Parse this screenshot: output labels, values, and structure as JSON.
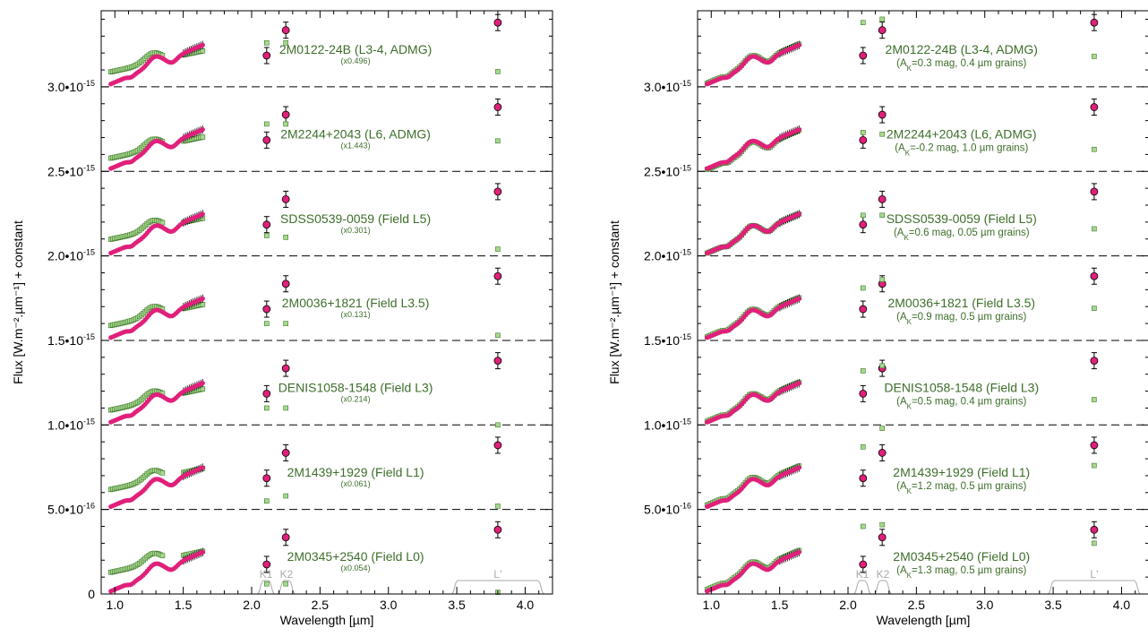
{
  "colors": {
    "observed": "#e0207a",
    "model": "#a8d890",
    "model_edge": "#3f7a2a",
    "label": "#3d6e2a",
    "filter": "#aaaaaa",
    "separator": "#000000"
  },
  "chart_data": [
    {
      "type": "scatter",
      "panel": "left",
      "xlabel": "Wavelength [µm]",
      "ylabel": "Flux [W.m⁻².µm⁻¹] + constant",
      "xlim": [
        0.9,
        4.2
      ],
      "ylim": [
        0,
        3.45e-15
      ],
      "xticks": [
        "1.0",
        "1.5",
        "2.0",
        "2.5",
        "3.0",
        "3.5",
        "4.0"
      ],
      "yticks": [
        {
          "value": 0,
          "label": "0"
        },
        {
          "value": 5e-16,
          "label": "5.0•10",
          "exp": "-16"
        },
        {
          "value": 1e-15,
          "label": "1.0•10",
          "exp": "-15"
        },
        {
          "value": 1.5e-15,
          "label": "1.5•10",
          "exp": "-15"
        },
        {
          "value": 2e-15,
          "label": "2.0•10",
          "exp": "-15"
        },
        {
          "value": 2.5e-15,
          "label": "2.5•10",
          "exp": "-15"
        },
        {
          "value": 3e-15,
          "label": "3.0•10",
          "exp": "-15"
        }
      ],
      "separators": [
        5e-16,
        1e-15,
        1.5e-15,
        2e-15,
        2.5e-15,
        3e-15
      ],
      "filters": [
        {
          "label": "K1",
          "x": [
            2.04,
            2.17
          ]
        },
        {
          "label": "K2",
          "x": [
            2.19,
            2.32
          ]
        },
        {
          "label": "L'",
          "x": [
            3.46,
            4.14
          ]
        }
      ],
      "series": [
        {
          "name": "2M0345+2540 (Field L0)",
          "note": "(x0.054)",
          "offset": 0,
          "phot": [
            1.75e-16,
            3.35e-16,
            3.8e-16
          ],
          "model_phot": [
            6e-17,
            6e-17,
            1e-17
          ],
          "model_shift": 1.1e-16
        },
        {
          "name": "2M1439+1929 (Field L1)",
          "note": "(x0.061)",
          "offset": 5e-16,
          "phot": [
            6.85e-16,
            8.35e-16,
            8.8e-16
          ],
          "model_phot": [
            5.5e-16,
            5.8e-16,
            5.2e-16
          ],
          "model_shift": 1e-16
        },
        {
          "name": "DENIS1058-1548 (Field L3)",
          "note": "(x0.214)",
          "offset": 1e-15,
          "phot": [
            1.185e-15,
            1.335e-15,
            1.38e-15
          ],
          "model_phot": [
            1.1e-15,
            1.1e-15,
            1e-15
          ],
          "model_shift": 7e-17
        },
        {
          "name": "2M0036+1821 (Field L3.5)",
          "note": "(x0.131)",
          "offset": 1.5e-15,
          "phot": [
            1.685e-15,
            1.835e-15,
            1.88e-15
          ],
          "model_phot": [
            1.6e-15,
            1.6e-15,
            1.53e-15
          ],
          "model_shift": 7e-17
        },
        {
          "name": "SDSS0539-0059 (Field L5)",
          "note": "(x0.301)",
          "offset": 2e-15,
          "phot": [
            2.185e-15,
            2.335e-15,
            2.38e-15
          ],
          "model_phot": [
            2.12e-15,
            2.11e-15,
            2.04e-15
          ],
          "model_shift": 8e-17
        },
        {
          "name": "2M2244+2043 (L6, ADMG)",
          "note": "(x1.443)",
          "offset": 2.5e-15,
          "phot": [
            2.685e-15,
            2.835e-15,
            2.88e-15
          ],
          "model_phot": [
            2.78e-15,
            2.78e-15,
            2.68e-15
          ],
          "model_shift": 6e-17
        },
        {
          "name": "2M0122-24B (L3-4, ADMG)",
          "note": "(x0.496)",
          "offset": 3e-15,
          "phot": [
            3.185e-15,
            3.335e-15,
            3.38e-15
          ],
          "model_phot": [
            3.26e-15,
            3.26e-15,
            3.09e-15
          ],
          "model_shift": 7e-17
        }
      ]
    },
    {
      "type": "scatter",
      "panel": "right",
      "xlabel": "Wavelength [µm]",
      "ylabel": "Flux [W.m⁻².µm⁻¹] + constant",
      "xlim": [
        0.9,
        4.2
      ],
      "ylim": [
        0,
        3.45e-15
      ],
      "xticks": [
        "1.0",
        "1.5",
        "2.0",
        "2.5",
        "3.0",
        "3.5",
        "4.0"
      ],
      "yticks": [
        {
          "value": 5e-16,
          "label": "5.0•10",
          "exp": "-16"
        },
        {
          "value": 1e-15,
          "label": "1.0•10",
          "exp": "-15"
        },
        {
          "value": 1.5e-15,
          "label": "1.5•10",
          "exp": "-15"
        },
        {
          "value": 2e-15,
          "label": "2.0•10",
          "exp": "-15"
        },
        {
          "value": 2.5e-15,
          "label": "2.5•10",
          "exp": "-15"
        },
        {
          "value": 3e-15,
          "label": "3.0•10",
          "exp": "-15"
        }
      ],
      "separators": [
        5e-16,
        1e-15,
        1.5e-15,
        2e-15,
        2.5e-15,
        3e-15
      ],
      "filters": [
        {
          "label": "K1",
          "x": [
            2.04,
            2.17
          ]
        },
        {
          "label": "K2",
          "x": [
            2.19,
            2.32
          ]
        },
        {
          "label": "L'",
          "x": [
            3.46,
            4.14
          ]
        }
      ],
      "series": [
        {
          "name": "2M0345+2540 (Field L0)",
          "note": "(A",
          "note_sub": "K",
          "note_tail": "=1.3 mag, 0.5 µm grains)",
          "offset": 0,
          "phot": [
            1.75e-16,
            3.35e-16,
            3.8e-16
          ],
          "model_phot": [
            4e-16,
            4.1e-16,
            3e-16
          ],
          "model_shift": 1e-17
        },
        {
          "name": "2M1439+1929 (Field L1)",
          "note": "(A",
          "note_sub": "K",
          "note_tail": "=1.2 mag, 0.5 µm grains)",
          "offset": 5e-16,
          "phot": [
            6.85e-16,
            8.35e-16,
            8.8e-16
          ],
          "model_phot": [
            8.7e-16,
            9.8e-16,
            7.6e-16
          ],
          "model_shift": 1e-17
        },
        {
          "name": "DENIS1058-1548 (Field L3)",
          "note": "(A",
          "note_sub": "K",
          "note_tail": "=0.5 mag, 0.4 µm grains)",
          "offset": 1e-15,
          "phot": [
            1.185e-15,
            1.335e-15,
            1.38e-15
          ],
          "model_phot": [
            1.32e-15,
            1.35e-15,
            1.15e-15
          ],
          "model_shift": 5e-18
        },
        {
          "name": "2M0036+1821 (Field L3.5)",
          "note": "(A",
          "note_sub": "K",
          "note_tail": "=0.9 mag, 0.5 µm grains)",
          "offset": 1.5e-15,
          "phot": [
            1.685e-15,
            1.835e-15,
            1.88e-15
          ],
          "model_phot": [
            1.81e-15,
            1.86e-15,
            1.69e-15
          ],
          "model_shift": 5e-18
        },
        {
          "name": "SDSS0539-0059 (Field L5)",
          "note": "(A",
          "note_sub": "K",
          "note_tail": "=0.6 mag, 0.05 µm grains)",
          "offset": 2e-15,
          "phot": [
            2.185e-15,
            2.335e-15,
            2.38e-15
          ],
          "model_phot": [
            2.24e-15,
            2.24e-15,
            2.16e-15
          ],
          "model_shift": 0.0
        },
        {
          "name": "2M2244+2043 (L6, ADMG)",
          "note": "(A",
          "note_sub": "K",
          "note_tail": "=-0.2 mag, 1.0 µm grains)",
          "offset": 2.5e-15,
          "phot": [
            2.685e-15,
            2.835e-15,
            2.88e-15
          ],
          "model_phot": [
            2.73e-15,
            2.72e-15,
            2.63e-15
          ],
          "model_shift": -5e-18
        },
        {
          "name": "2M0122-24B (L3-4, ADMG)",
          "note": "(A",
          "note_sub": "K",
          "note_tail": "=0.3 mag, 0.4 µm grains)",
          "offset": 3e-15,
          "phot": [
            3.185e-15,
            3.335e-15,
            3.38e-15
          ],
          "model_phot": [
            3.38e-15,
            3.4e-15,
            3.18e-15
          ],
          "model_shift": 5e-18
        }
      ]
    }
  ]
}
